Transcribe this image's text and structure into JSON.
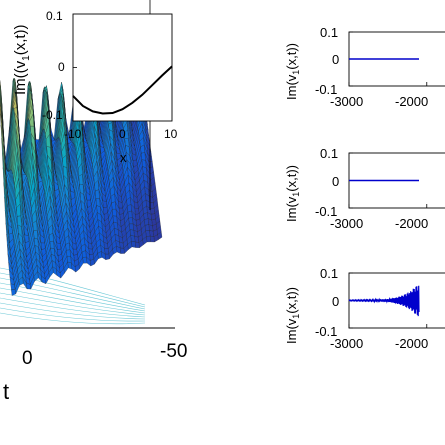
{
  "chart_data": [
    {
      "type": "surface",
      "zlabel": "Im((v",
      "zlabel_sub": "1",
      "zlabel_tail": "(x,t))",
      "t_tick_labels": [
        "0",
        "-50"
      ],
      "tlabel": "t",
      "colormap": [
        "#352a87",
        "#0f5cdd",
        "#1481d6",
        "#06a4ca",
        "#2eb7a4",
        "#87bf77",
        "#d1bb59",
        "#fec832",
        "#f9fb0e"
      ],
      "inset": {
        "type": "line",
        "x": [
          -10,
          -8,
          -6,
          -4,
          -2,
          0,
          2,
          4,
          6,
          8,
          10
        ],
        "y": [
          -0.053,
          -0.072,
          -0.082,
          -0.086,
          -0.085,
          -0.078,
          -0.066,
          -0.051,
          -0.033,
          -0.015,
          0.002
        ],
        "xlim": [
          -10,
          10
        ],
        "ylim": [
          -0.1,
          0.1
        ],
        "x_tick_labels": [
          "-10",
          "0",
          "10"
        ],
        "y_tick_labels": [
          "0.1",
          "0",
          "-0.1"
        ],
        "xlabel": "x",
        "line_color": "#000000"
      }
    },
    {
      "type": "line",
      "ylabel": "Im(v",
      "ylabel_sub": "1",
      "ylabel_tail": "(x,t))",
      "ylim": [
        -0.1,
        0.1
      ],
      "y_tick_labels": [
        "0.1",
        "0",
        "-0.1"
      ],
      "x_tick_labels": [
        "-3000",
        "-2000"
      ],
      "series": [
        {
          "envelope": [
            [
              -3000,
              0
            ],
            [
              -2100,
              0
            ]
          ],
          "line_color": "#0000cc"
        }
      ]
    },
    {
      "type": "line",
      "ylabel": "Im(v",
      "ylabel_sub": "1",
      "ylabel_tail": "(x,t))",
      "ylim": [
        -0.1,
        0.1
      ],
      "y_tick_labels": [
        "0.1",
        "0",
        "-0.1"
      ],
      "x_tick_labels": [
        "-3000",
        "-2000"
      ],
      "series": [
        {
          "envelope": [
            [
              -3000,
              0
            ],
            [
              -2100,
              0
            ]
          ],
          "line_color": "#0000cc"
        }
      ]
    },
    {
      "type": "line",
      "ylabel": "Im(v",
      "ylabel_sub": "1",
      "ylabel_tail": "(x,t))",
      "ylim": [
        -0.1,
        0.1
      ],
      "y_tick_labels": [
        "0.1",
        "0",
        "-0.1"
      ],
      "x_tick_labels": [
        "-3000",
        "-2000"
      ],
      "series": [
        {
          "envelope": [
            [
              -3000,
              0.001
            ],
            [
              -2700,
              0.002
            ],
            [
              -2500,
              0.005
            ],
            [
              -2400,
              0.01
            ],
            [
              -2300,
              0.02
            ],
            [
              -2200,
              0.035
            ],
            [
              -2150,
              0.05
            ],
            [
              -2100,
              0.06
            ]
          ],
          "line_color": "#0000cc"
        }
      ]
    }
  ]
}
